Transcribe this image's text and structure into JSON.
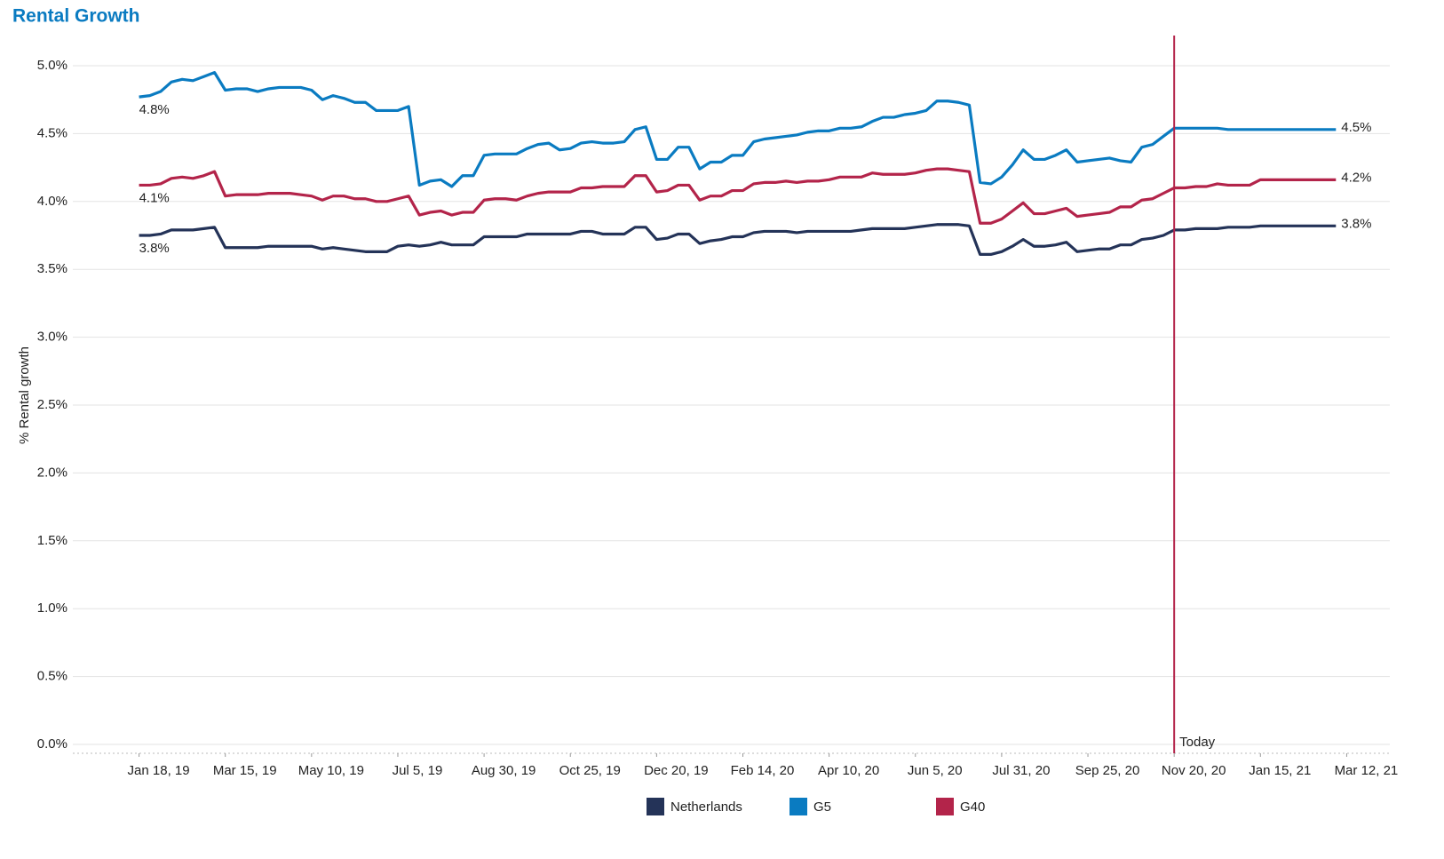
{
  "chart_data": {
    "type": "line",
    "title": "Rental Growth",
    "y_label": "% Rental growth",
    "x": [
      "2019-01-18",
      "2019-01-25",
      "2019-02-01",
      "2019-02-08",
      "2019-02-15",
      "2019-02-22",
      "2019-03-01",
      "2019-03-08",
      "2019-03-15",
      "2019-03-22",
      "2019-03-29",
      "2019-04-05",
      "2019-04-12",
      "2019-04-19",
      "2019-04-26",
      "2019-05-03",
      "2019-05-10",
      "2019-05-17",
      "2019-05-24",
      "2019-05-31",
      "2019-06-07",
      "2019-06-14",
      "2019-06-21",
      "2019-06-28",
      "2019-07-05",
      "2019-07-12",
      "2019-07-19",
      "2019-07-26",
      "2019-08-02",
      "2019-08-09",
      "2019-08-16",
      "2019-08-23",
      "2019-08-30",
      "2019-09-06",
      "2019-09-13",
      "2019-09-20",
      "2019-09-27",
      "2019-10-04",
      "2019-10-11",
      "2019-10-18",
      "2019-10-25",
      "2019-11-01",
      "2019-11-08",
      "2019-11-15",
      "2019-11-22",
      "2019-11-29",
      "2019-12-06",
      "2019-12-13",
      "2019-12-20",
      "2019-12-27",
      "2020-01-03",
      "2020-01-10",
      "2020-01-17",
      "2020-01-24",
      "2020-01-31",
      "2020-02-07",
      "2020-02-14",
      "2020-02-21",
      "2020-02-28",
      "2020-03-06",
      "2020-03-13",
      "2020-03-20",
      "2020-03-27",
      "2020-04-03",
      "2020-04-10",
      "2020-04-17",
      "2020-04-24",
      "2020-05-01",
      "2020-05-08",
      "2020-05-15",
      "2020-05-22",
      "2020-05-29",
      "2020-06-05",
      "2020-06-12",
      "2020-06-19",
      "2020-06-26",
      "2020-07-03",
      "2020-07-10",
      "2020-07-17",
      "2020-07-24",
      "2020-07-31",
      "2020-08-07",
      "2020-08-14",
      "2020-08-21",
      "2020-08-28",
      "2020-09-04",
      "2020-09-11",
      "2020-09-18",
      "2020-09-25",
      "2020-10-02",
      "2020-10-09",
      "2020-10-16",
      "2020-10-23",
      "2020-10-30",
      "2020-11-06",
      "2020-11-13",
      "2020-11-20",
      "2020-11-27",
      "2020-12-04",
      "2020-12-11",
      "2020-12-18",
      "2020-12-25",
      "2021-01-01",
      "2021-01-08",
      "2021-01-15",
      "2021-01-22",
      "2021-01-29",
      "2021-02-05",
      "2021-02-12",
      "2021-02-19",
      "2021-02-26",
      "2021-03-05"
    ],
    "series": [
      {
        "name": "Netherlands",
        "color": "#243358",
        "value_labels": {
          "0": "3.8%",
          "111": "3.8%"
        },
        "values": [
          3.75,
          3.75,
          3.76,
          3.79,
          3.79,
          3.79,
          3.8,
          3.81,
          3.66,
          3.66,
          3.66,
          3.66,
          3.67,
          3.67,
          3.67,
          3.67,
          3.67,
          3.65,
          3.66,
          3.65,
          3.64,
          3.63,
          3.63,
          3.63,
          3.67,
          3.68,
          3.67,
          3.68,
          3.7,
          3.68,
          3.68,
          3.68,
          3.74,
          3.74,
          3.74,
          3.74,
          3.76,
          3.76,
          3.76,
          3.76,
          3.76,
          3.78,
          3.78,
          3.76,
          3.76,
          3.76,
          3.81,
          3.81,
          3.72,
          3.73,
          3.76,
          3.76,
          3.69,
          3.71,
          3.72,
          3.74,
          3.74,
          3.77,
          3.78,
          3.78,
          3.78,
          3.77,
          3.78,
          3.78,
          3.78,
          3.78,
          3.78,
          3.79,
          3.8,
          3.8,
          3.8,
          3.8,
          3.81,
          3.82,
          3.83,
          3.83,
          3.83,
          3.82,
          3.61,
          3.61,
          3.63,
          3.67,
          3.72,
          3.67,
          3.67,
          3.68,
          3.7,
          3.63,
          3.64,
          3.65,
          3.65,
          3.68,
          3.68,
          3.72,
          3.73,
          3.75,
          3.79,
          3.79,
          3.8,
          3.8,
          3.8,
          3.81,
          3.81,
          3.81,
          3.82,
          3.82,
          3.82,
          3.82,
          3.82,
          3.82,
          3.82,
          3.82
        ]
      },
      {
        "name": "G5",
        "color": "#0a7bc1",
        "value_labels": {
          "0": "4.8%",
          "111": "4.5%"
        },
        "values": [
          4.77,
          4.78,
          4.81,
          4.88,
          4.9,
          4.89,
          4.92,
          4.95,
          4.82,
          4.83,
          4.83,
          4.81,
          4.83,
          4.84,
          4.84,
          4.84,
          4.82,
          4.75,
          4.78,
          4.76,
          4.73,
          4.73,
          4.67,
          4.67,
          4.67,
          4.7,
          4.12,
          4.15,
          4.16,
          4.11,
          4.19,
          4.19,
          4.34,
          4.35,
          4.35,
          4.35,
          4.39,
          4.42,
          4.43,
          4.38,
          4.39,
          4.43,
          4.44,
          4.43,
          4.43,
          4.44,
          4.53,
          4.55,
          4.31,
          4.31,
          4.4,
          4.4,
          4.24,
          4.29,
          4.29,
          4.34,
          4.34,
          4.44,
          4.46,
          4.47,
          4.48,
          4.49,
          4.51,
          4.52,
          4.52,
          4.54,
          4.54,
          4.55,
          4.59,
          4.62,
          4.62,
          4.64,
          4.65,
          4.67,
          4.74,
          4.74,
          4.73,
          4.71,
          4.14,
          4.13,
          4.18,
          4.27,
          4.38,
          4.31,
          4.31,
          4.34,
          4.38,
          4.29,
          4.3,
          4.31,
          4.32,
          4.3,
          4.29,
          4.4,
          4.42,
          4.48,
          4.54,
          4.54,
          4.54,
          4.54,
          4.54,
          4.53,
          4.53,
          4.53,
          4.53,
          4.53,
          4.53,
          4.53,
          4.53,
          4.53,
          4.53,
          4.53
        ]
      },
      {
        "name": "G40",
        "color": "#b3244a",
        "value_labels": {
          "0": "4.1%",
          "111": "4.2%"
        },
        "values": [
          4.12,
          4.12,
          4.13,
          4.17,
          4.18,
          4.17,
          4.19,
          4.22,
          4.04,
          4.05,
          4.05,
          4.05,
          4.06,
          4.06,
          4.06,
          4.05,
          4.04,
          4.01,
          4.04,
          4.04,
          4.02,
          4.02,
          4.0,
          4.0,
          4.02,
          4.04,
          3.9,
          3.92,
          3.93,
          3.9,
          3.92,
          3.92,
          4.01,
          4.02,
          4.02,
          4.01,
          4.04,
          4.06,
          4.07,
          4.07,
          4.07,
          4.1,
          4.1,
          4.11,
          4.11,
          4.11,
          4.19,
          4.19,
          4.07,
          4.08,
          4.12,
          4.12,
          4.01,
          4.04,
          4.04,
          4.08,
          4.08,
          4.13,
          4.14,
          4.14,
          4.15,
          4.14,
          4.15,
          4.15,
          4.16,
          4.18,
          4.18,
          4.18,
          4.21,
          4.2,
          4.2,
          4.2,
          4.21,
          4.23,
          4.24,
          4.24,
          4.23,
          4.22,
          3.84,
          3.84,
          3.87,
          3.93,
          3.99,
          3.91,
          3.91,
          3.93,
          3.95,
          3.89,
          3.9,
          3.91,
          3.92,
          3.96,
          3.96,
          4.01,
          4.02,
          4.06,
          4.1,
          4.1,
          4.11,
          4.11,
          4.13,
          4.12,
          4.12,
          4.12,
          4.16,
          4.16,
          4.16,
          4.16,
          4.16,
          4.16,
          4.16,
          4.16
        ]
      }
    ],
    "xlim": [
      "2018-12-21",
      "2021-04-09"
    ],
    "xticks": [
      {
        "value": "2019-01-18",
        "label": "Jan 18, 19"
      },
      {
        "value": "2019-03-15",
        "label": "Mar 15, 19"
      },
      {
        "value": "2019-05-10",
        "label": "May 10, 19"
      },
      {
        "value": "2019-07-05",
        "label": "Jul 5, 19"
      },
      {
        "value": "2019-08-30",
        "label": "Aug 30, 19"
      },
      {
        "value": "2019-10-25",
        "label": "Oct 25, 19"
      },
      {
        "value": "2019-12-20",
        "label": "Dec 20, 19"
      },
      {
        "value": "2020-02-14",
        "label": "Feb 14, 20"
      },
      {
        "value": "2020-04-10",
        "label": "Apr 10, 20"
      },
      {
        "value": "2020-06-05",
        "label": "Jun 5, 20"
      },
      {
        "value": "2020-07-31",
        "label": "Jul 31, 20"
      },
      {
        "value": "2020-09-25",
        "label": "Sep 25, 20"
      },
      {
        "value": "2020-11-20",
        "label": "Nov 20, 20"
      },
      {
        "value": "2021-01-15",
        "label": "Jan 15, 21"
      },
      {
        "value": "2021-03-12",
        "label": "Mar 12, 21"
      }
    ],
    "ylim": [
      0,
      5
    ],
    "yticks": [
      {
        "value": 0,
        "label": "0.0%"
      },
      {
        "value": 0.5,
        "label": "0.5%"
      },
      {
        "value": 1,
        "label": "1.0%"
      },
      {
        "value": 1.5,
        "label": "1.5%"
      },
      {
        "value": 2,
        "label": "2.0%"
      },
      {
        "value": 2.5,
        "label": "2.5%"
      },
      {
        "value": 3,
        "label": "3.0%"
      },
      {
        "value": 3.5,
        "label": "3.5%"
      },
      {
        "value": 4,
        "label": "4.0%"
      },
      {
        "value": 4.5,
        "label": "4.5%"
      },
      {
        "value": 5,
        "label": "5.0%"
      }
    ],
    "grid": true,
    "legend": "bottom",
    "annotation": {
      "x": "2020-11-20",
      "text": "Today",
      "color": "#b3244a"
    }
  }
}
